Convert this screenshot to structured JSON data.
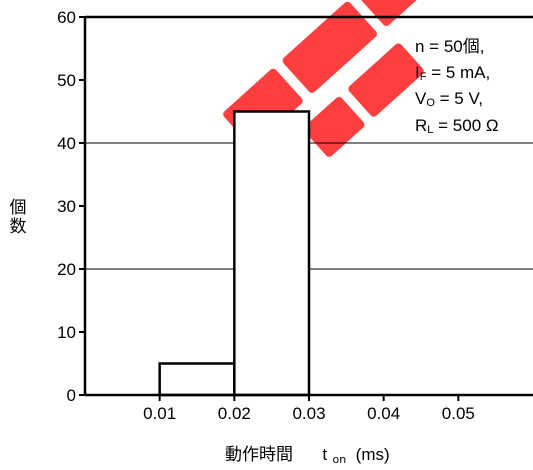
{
  "chart_data": {
    "type": "bar",
    "subtype": "histogram",
    "bins": [
      {
        "x_start": 0.01,
        "x_end": 0.02,
        "count": 5
      },
      {
        "x_start": 0.02,
        "x_end": 0.03,
        "count": 45
      }
    ],
    "xlim": [
      0.0,
      0.06
    ],
    "ylim": [
      0,
      60
    ],
    "xticks": [
      0.01,
      0.02,
      0.03,
      0.04,
      0.05
    ],
    "xtick_labels": [
      "0.01",
      "0.02",
      "0.03",
      "0.04",
      "0.05"
    ],
    "yticks": [
      0,
      10,
      20,
      30,
      40,
      50,
      60
    ],
    "ytick_labels": [
      "0",
      "10",
      "20",
      "30",
      "40",
      "50",
      "60"
    ],
    "gridlines_y": [
      20,
      40
    ],
    "ylabel": "個数",
    "xlabel": {
      "main": "動作時間",
      "symbol": "t",
      "symbol_sub": "on",
      "unit": "(ms)"
    },
    "annotations": [
      {
        "main": "n = 50個,",
        "sub": "",
        "rest": ""
      },
      {
        "main": "I",
        "sub": "F",
        "rest": " = 5 mA,"
      },
      {
        "main": "V",
        "sub": "O",
        "rest": " = 5 V,"
      },
      {
        "main": "R",
        "sub": "L",
        "rest": " = 500 Ω"
      }
    ],
    "colors": {
      "bar_fill": "#ffffff",
      "bar_stroke": "#000000",
      "watermark": "#ff0000"
    }
  }
}
